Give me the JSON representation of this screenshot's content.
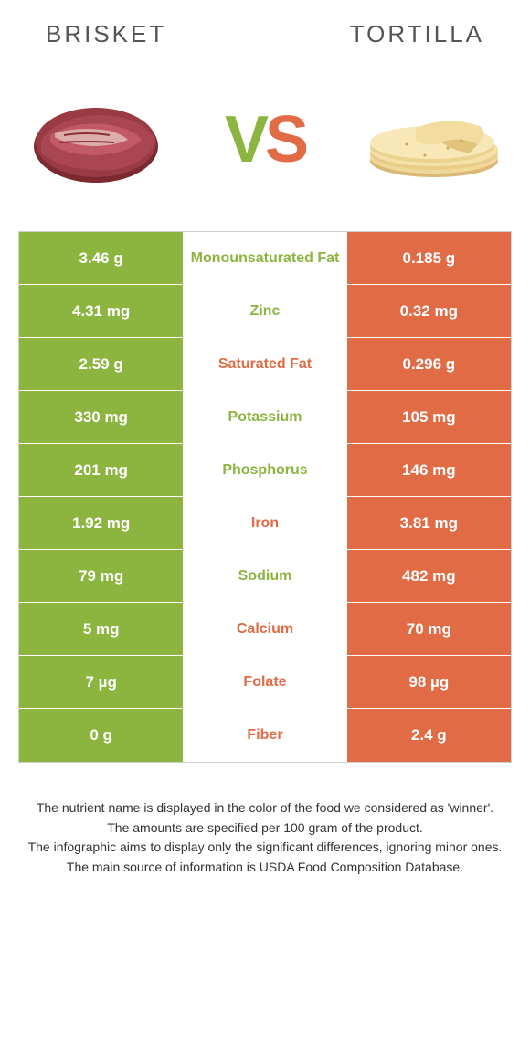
{
  "colors": {
    "green": "#8cb540",
    "orange": "#e06b44",
    "cell_green": "#8cb540",
    "cell_orange": "#e06b44"
  },
  "header": {
    "left": "Brisket",
    "right": "Tortilla"
  },
  "vs": {
    "v": "V",
    "s": "S"
  },
  "rows": [
    {
      "left": "3.46 g",
      "label": "Monounsaturated Fat",
      "right": "0.185 g",
      "winner": "left"
    },
    {
      "left": "4.31 mg",
      "label": "Zinc",
      "right": "0.32 mg",
      "winner": "left"
    },
    {
      "left": "2.59 g",
      "label": "Saturated Fat",
      "right": "0.296 g",
      "winner": "right"
    },
    {
      "left": "330 mg",
      "label": "Potassium",
      "right": "105 mg",
      "winner": "left"
    },
    {
      "left": "201 mg",
      "label": "Phosphorus",
      "right": "146 mg",
      "winner": "left"
    },
    {
      "left": "1.92 mg",
      "label": "Iron",
      "right": "3.81 mg",
      "winner": "right"
    },
    {
      "left": "79 mg",
      "label": "Sodium",
      "right": "482 mg",
      "winner": "left"
    },
    {
      "left": "5 mg",
      "label": "Calcium",
      "right": "70 mg",
      "winner": "right"
    },
    {
      "left": "7 µg",
      "label": "Folate",
      "right": "98 µg",
      "winner": "right"
    },
    {
      "left": "0 g",
      "label": "Fiber",
      "right": "2.4 g",
      "winner": "right"
    }
  ],
  "footnotes": [
    "The nutrient name is displayed in the color of the food we considered as 'winner'.",
    "The amounts are specified per 100 gram of the product.",
    "The infographic aims to display only the significant differences, ignoring minor ones.",
    "The main source of information is USDA Food Composition Database."
  ]
}
